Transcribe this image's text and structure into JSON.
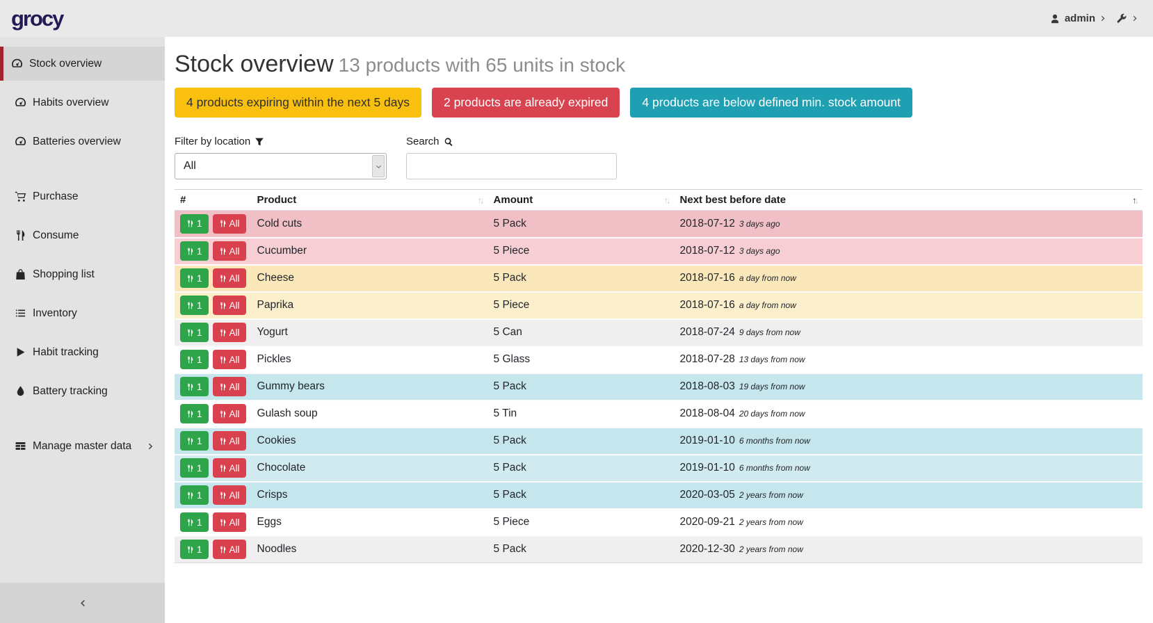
{
  "navbar": {
    "logo": "grocy",
    "user_label": "admin"
  },
  "sidebar": {
    "items": [
      {
        "label": "Stock overview",
        "icon": "tachometer",
        "active": true
      },
      {
        "label": "Habits overview",
        "icon": "tachometer"
      },
      {
        "label": "Batteries overview",
        "icon": "tachometer"
      },
      {
        "label": "Purchase",
        "icon": "cart",
        "gap_before": true
      },
      {
        "label": "Consume",
        "icon": "utensils"
      },
      {
        "label": "Shopping list",
        "icon": "bag"
      },
      {
        "label": "Inventory",
        "icon": "list"
      },
      {
        "label": "Habit tracking",
        "icon": "play"
      },
      {
        "label": "Battery tracking",
        "icon": "drop"
      },
      {
        "label": "Manage master data",
        "icon": "table",
        "gap_before": true,
        "chevron": true
      }
    ]
  },
  "page": {
    "title": "Stock overview",
    "subtitle": "13 products with 65 units in stock"
  },
  "alerts": [
    {
      "type": "warning",
      "text": "4 products expiring within the next 5 days"
    },
    {
      "type": "danger",
      "text": "2 products are already expired"
    },
    {
      "type": "info",
      "text": "4 products are below defined min. stock amount"
    }
  ],
  "filter": {
    "label": "Filter by location",
    "value": "All"
  },
  "search": {
    "label": "Search",
    "value": ""
  },
  "table": {
    "columns": [
      {
        "label": "#",
        "sortable": false
      },
      {
        "label": "Product",
        "sortable": true
      },
      {
        "label": "Amount",
        "sortable": true
      },
      {
        "label": "Next best before date",
        "sortable": true,
        "sorted": "asc"
      }
    ],
    "action_one": "1",
    "action_all": "All",
    "rows": [
      {
        "product": "Cold cuts",
        "amount": "5 Pack",
        "best_before": "2018-07-12",
        "relative": "3 days ago",
        "status": "danger"
      },
      {
        "product": "Cucumber",
        "amount": "5 Piece",
        "best_before": "2018-07-12",
        "relative": "3 days ago",
        "status": "danger"
      },
      {
        "product": "Cheese",
        "amount": "5 Pack",
        "best_before": "2018-07-16",
        "relative": "a day from now",
        "status": "warning"
      },
      {
        "product": "Paprika",
        "amount": "5 Piece",
        "best_before": "2018-07-16",
        "relative": "a day from now",
        "status": "warning"
      },
      {
        "product": "Yogurt",
        "amount": "5 Can",
        "best_before": "2018-07-24",
        "relative": "9 days from now",
        "status": "none"
      },
      {
        "product": "Pickles",
        "amount": "5 Glass",
        "best_before": "2018-07-28",
        "relative": "13 days from now",
        "status": "none"
      },
      {
        "product": "Gummy bears",
        "amount": "5 Pack",
        "best_before": "2018-08-03",
        "relative": "19 days from now",
        "status": "info"
      },
      {
        "product": "Gulash soup",
        "amount": "5 Tin",
        "best_before": "2018-08-04",
        "relative": "20 days from now",
        "status": "none"
      },
      {
        "product": "Cookies",
        "amount": "5 Pack",
        "best_before": "2019-01-10",
        "relative": "6 months from now",
        "status": "info"
      },
      {
        "product": "Chocolate",
        "amount": "5 Pack",
        "best_before": "2019-01-10",
        "relative": "6 months from now",
        "status": "info"
      },
      {
        "product": "Crisps",
        "amount": "5 Pack",
        "best_before": "2020-03-05",
        "relative": "2 years from now",
        "status": "info"
      },
      {
        "product": "Eggs",
        "amount": "5 Piece",
        "best_before": "2020-09-21",
        "relative": "2 years from now",
        "status": "none"
      },
      {
        "product": "Noodles",
        "amount": "5 Pack",
        "best_before": "2020-12-30",
        "relative": "2 years from now",
        "status": "none"
      }
    ]
  },
  "colors": {
    "logo": "#241a54",
    "active-border": "#a2232e",
    "warning": "#f9c00f",
    "danger": "#d9424f",
    "info": "#1fa0b2",
    "success": "#2fa54b",
    "danger-btn": "#d9414e",
    "row-danger-odd": "#f1c0c7",
    "row-danger-even": "#f6ced4",
    "row-warning-odd": "#fae8ba",
    "row-warning-even": "#fcefcc",
    "row-info-odd": "#c5e6ed",
    "row-info-even": "#d2ebf1"
  }
}
